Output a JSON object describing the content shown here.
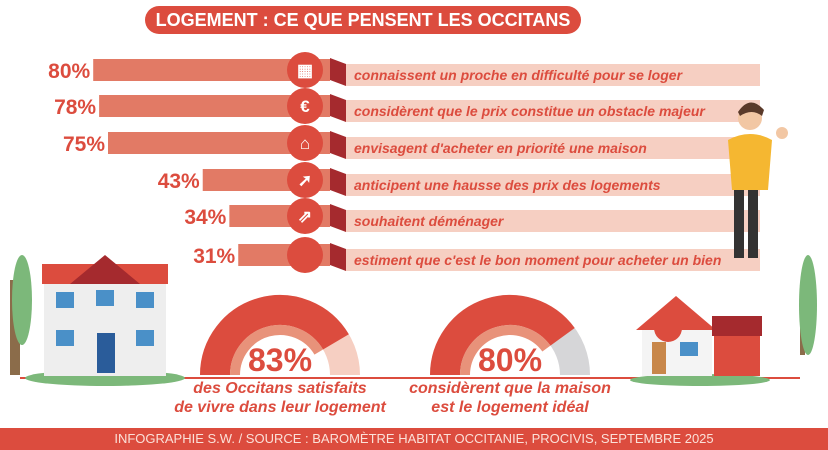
{
  "title": "LOGEMENT : CE QUE PENSENT LES OCCITANS",
  "chart_data": {
    "type": "bar",
    "title": "LOGEMENT : CE QUE PENSENT LES OCCITANS",
    "categories": [
      "connaissent un proche en difficulté pour se loger",
      "considèrent que le prix constitue un obstacle majeur",
      "envisagent d'acheter en priorité une maison",
      "anticipent une hausse des prix des logements",
      "souhaitent déménager",
      "estiment que c'est le bon moment pour acheter un bien"
    ],
    "values": [
      80,
      78,
      75,
      43,
      34,
      31
    ],
    "value_labels": [
      "80%",
      "78%",
      "75%",
      "43%",
      "34%",
      "31%"
    ],
    "icons": [
      "building-icon",
      "euro-icon",
      "house-icon",
      "arrow-up-right-icon",
      "move-out-icon",
      "circle-icon"
    ],
    "unit": "%"
  },
  "gauges": [
    {
      "value": 83,
      "label": "83%",
      "caption_1": "des Occitans satisfaits",
      "caption_2": "de vivre dans leur logement"
    },
    {
      "value": 80,
      "label": "80%",
      "caption_1": "considèrent que la maison",
      "caption_2": "est le logement idéal"
    }
  ],
  "footer": "INFOGRAPHIE S.W. / SOURCE : BAROMÈTRE HABITAT OCCITANIE, PROCIVIS, SEPTEMBRE 2025",
  "colors": {
    "accent": "#dc4c3e",
    "bar": "#e27a65",
    "band": "#f6cfc2",
    "fold": "#a52a2e"
  }
}
